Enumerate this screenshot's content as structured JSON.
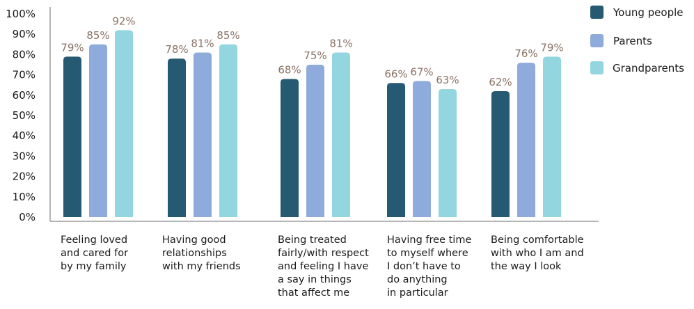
{
  "chart_data": {
    "type": "bar",
    "categories": [
      [
        "Feeling loved",
        "and cared for",
        "by my family"
      ],
      [
        "Having good",
        "relationships",
        "with my friends"
      ],
      [
        "Being treated",
        "fairly/with respect",
        "and feeling I have",
        "a say in things",
        "that affect me"
      ],
      [
        "Having free time",
        "to myself where",
        "I don’t have to",
        "do anything",
        "in particular"
      ],
      [
        "Being comfortable",
        "with who I am and",
        "the way I look"
      ]
    ],
    "series": [
      {
        "name": "Young people",
        "values": [
          79,
          78,
          68,
          66,
          62
        ],
        "labels": [
          "79%",
          "78%",
          "68%",
          "66%",
          "62%"
        ]
      },
      {
        "name": "Parents",
        "values": [
          85,
          81,
          75,
          67,
          76
        ],
        "labels": [
          "85%",
          "81%",
          "75%",
          "67%",
          "76%"
        ]
      },
      {
        "name": "Grandparents",
        "values": [
          92,
          85,
          81,
          63,
          79
        ],
        "labels": [
          "92%",
          "85%",
          "81%",
          "63%",
          "79%"
        ]
      }
    ],
    "ylim": [
      0,
      100
    ],
    "yticks": [
      "0%",
      "10%",
      "20%",
      "30%",
      "40%",
      "50%",
      "60%",
      "70%",
      "80%",
      "90%",
      "100%"
    ],
    "legend_position": "top-right",
    "grid": false,
    "colors": {
      "series": [
        "#265a73",
        "#8eabdb",
        "#93d6df"
      ],
      "data_label": "#8a7265",
      "axis": "#6b6b6b",
      "text": "#1a1a1a"
    }
  }
}
